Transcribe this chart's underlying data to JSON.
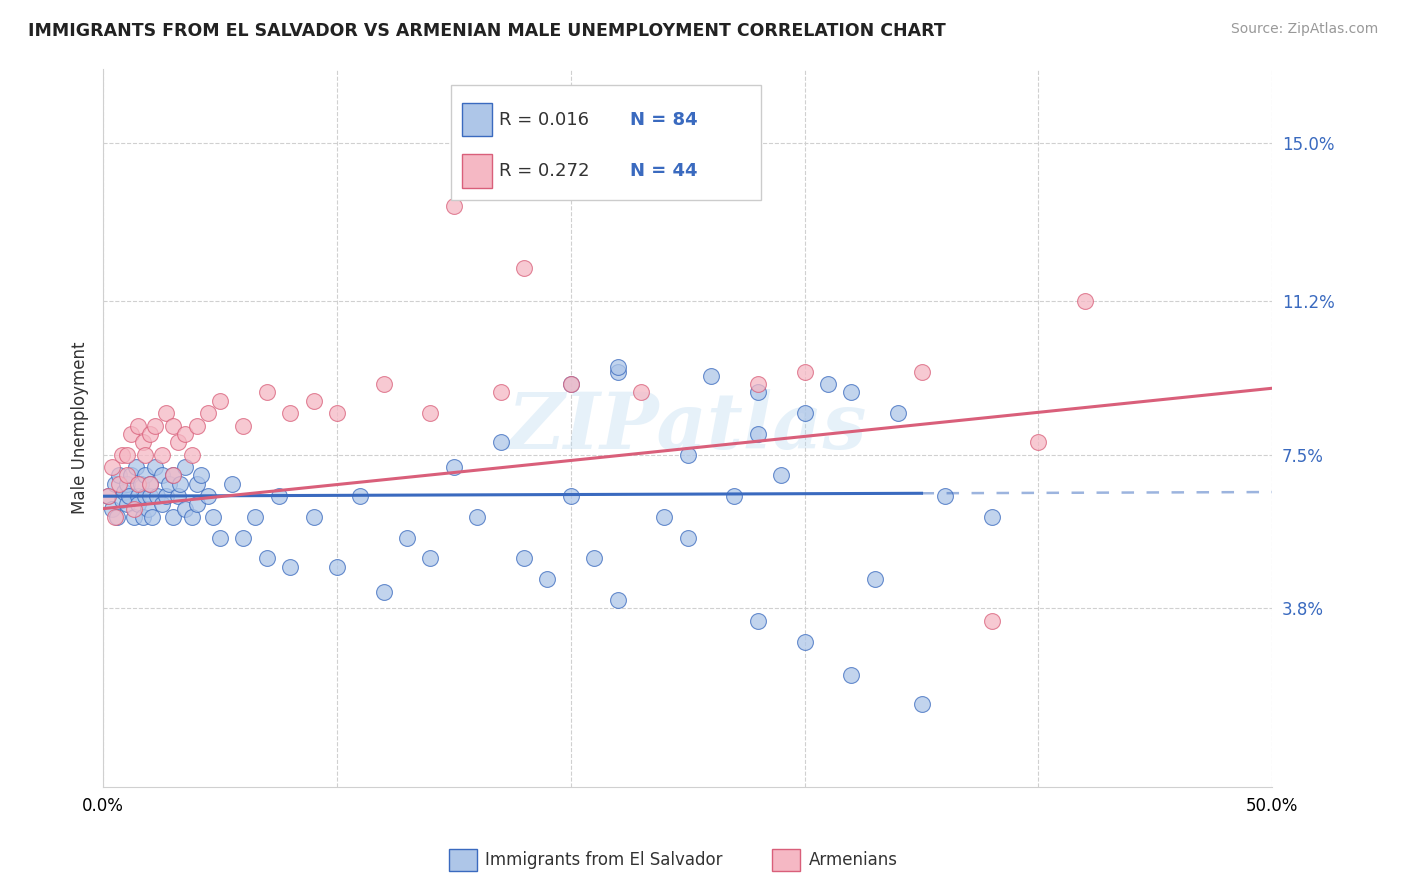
{
  "title": "IMMIGRANTS FROM EL SALVADOR VS ARMENIAN MALE UNEMPLOYMENT CORRELATION CHART",
  "source": "Source: ZipAtlas.com",
  "xlabel_blue": "Immigrants from El Salvador",
  "xlabel_pink": "Armenians",
  "ylabel": "Male Unemployment",
  "xlim": [
    0.0,
    0.5
  ],
  "ylim": [
    -0.005,
    0.168
  ],
  "xticks": [
    0.0,
    0.1,
    0.2,
    0.3,
    0.4,
    0.5
  ],
  "xticklabels": [
    "0.0%",
    "",
    "",
    "",
    "",
    "50.0%"
  ],
  "ytick_positions": [
    0.038,
    0.075,
    0.112,
    0.15
  ],
  "ytick_labels": [
    "3.8%",
    "7.5%",
    "11.2%",
    "15.0%"
  ],
  "blue_color": "#aec6e8",
  "pink_color": "#f5b8c4",
  "line_blue": "#3a6abf",
  "line_pink": "#d95f7a",
  "watermark": "ZIPatlas",
  "blue_line_intercept": 0.065,
  "blue_line_slope": 0.002,
  "blue_line_solid_end": 0.35,
  "pink_line_intercept": 0.062,
  "pink_line_slope": 0.058,
  "blue_scatter_x": [
    0.002,
    0.004,
    0.005,
    0.006,
    0.007,
    0.008,
    0.009,
    0.01,
    0.01,
    0.011,
    0.012,
    0.013,
    0.014,
    0.015,
    0.015,
    0.016,
    0.017,
    0.018,
    0.018,
    0.019,
    0.02,
    0.02,
    0.021,
    0.022,
    0.023,
    0.025,
    0.025,
    0.027,
    0.028,
    0.03,
    0.03,
    0.032,
    0.033,
    0.035,
    0.035,
    0.038,
    0.04,
    0.04,
    0.042,
    0.045,
    0.047,
    0.05,
    0.055,
    0.06,
    0.065,
    0.07,
    0.075,
    0.08,
    0.09,
    0.1,
    0.11,
    0.12,
    0.13,
    0.14,
    0.16,
    0.18,
    0.2,
    0.22,
    0.25,
    0.28,
    0.3,
    0.32,
    0.35,
    0.2,
    0.22,
    0.25,
    0.28,
    0.3,
    0.32,
    0.15,
    0.17,
    0.19,
    0.21,
    0.24,
    0.27,
    0.29,
    0.31,
    0.34,
    0.36,
    0.22,
    0.26,
    0.28,
    0.33,
    0.38
  ],
  "blue_scatter_y": [
    0.065,
    0.062,
    0.068,
    0.06,
    0.07,
    0.064,
    0.066,
    0.068,
    0.063,
    0.065,
    0.07,
    0.06,
    0.072,
    0.065,
    0.063,
    0.068,
    0.06,
    0.07,
    0.065,
    0.062,
    0.065,
    0.068,
    0.06,
    0.072,
    0.065,
    0.07,
    0.063,
    0.065,
    0.068,
    0.06,
    0.07,
    0.065,
    0.068,
    0.062,
    0.072,
    0.06,
    0.068,
    0.063,
    0.07,
    0.065,
    0.06,
    0.055,
    0.068,
    0.055,
    0.06,
    0.05,
    0.065,
    0.048,
    0.06,
    0.048,
    0.065,
    0.042,
    0.055,
    0.05,
    0.06,
    0.05,
    0.065,
    0.04,
    0.055,
    0.035,
    0.03,
    0.022,
    0.015,
    0.092,
    0.095,
    0.075,
    0.08,
    0.085,
    0.09,
    0.072,
    0.078,
    0.045,
    0.05,
    0.06,
    0.065,
    0.07,
    0.092,
    0.085,
    0.065,
    0.096,
    0.094,
    0.09,
    0.045,
    0.06
  ],
  "pink_scatter_x": [
    0.002,
    0.004,
    0.005,
    0.007,
    0.008,
    0.01,
    0.01,
    0.012,
    0.013,
    0.015,
    0.015,
    0.017,
    0.018,
    0.02,
    0.02,
    0.022,
    0.025,
    0.027,
    0.03,
    0.03,
    0.032,
    0.035,
    0.038,
    0.04,
    0.045,
    0.05,
    0.06,
    0.07,
    0.08,
    0.09,
    0.1,
    0.12,
    0.14,
    0.17,
    0.2,
    0.23,
    0.28,
    0.3,
    0.35,
    0.42,
    0.15,
    0.18,
    0.38,
    0.4
  ],
  "pink_scatter_y": [
    0.065,
    0.072,
    0.06,
    0.068,
    0.075,
    0.07,
    0.075,
    0.08,
    0.062,
    0.068,
    0.082,
    0.078,
    0.075,
    0.08,
    0.068,
    0.082,
    0.075,
    0.085,
    0.07,
    0.082,
    0.078,
    0.08,
    0.075,
    0.082,
    0.085,
    0.088,
    0.082,
    0.09,
    0.085,
    0.088,
    0.085,
    0.092,
    0.085,
    0.09,
    0.092,
    0.09,
    0.092,
    0.095,
    0.095,
    0.112,
    0.135,
    0.12,
    0.035,
    0.078
  ]
}
